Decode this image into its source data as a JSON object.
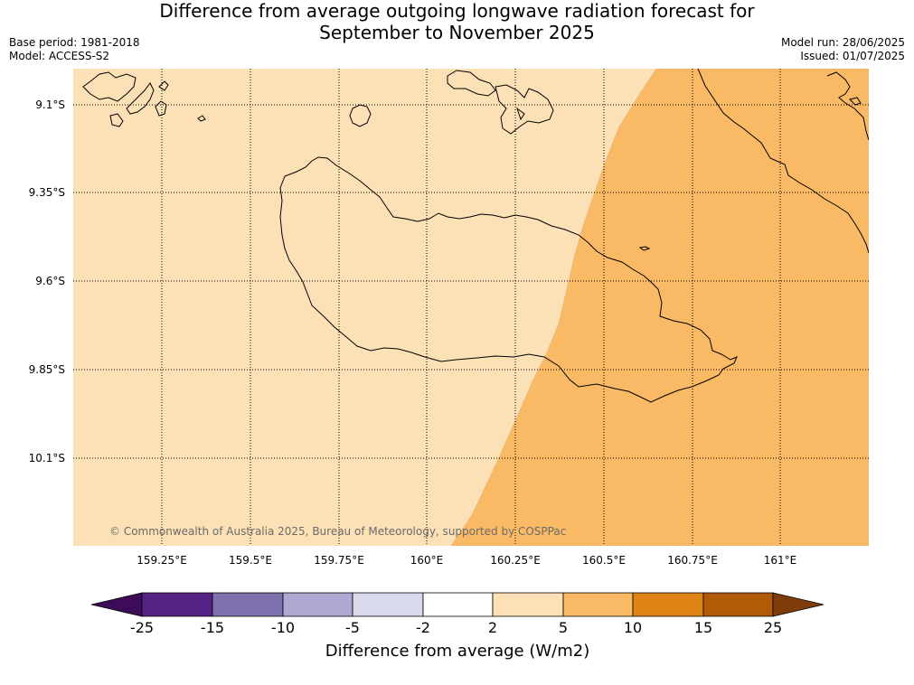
{
  "header": {
    "title_line1": "Difference from average outgoing longwave radiation forecast for",
    "title_line2": "September to November 2025",
    "base_period": "Base period: 1981-2018",
    "model": "Model: ACCESS-S2",
    "model_run": "Model run: 28/06/2025",
    "issued": "Issued: 01/07/2025"
  },
  "map": {
    "lat_labels": [
      "9.1°S",
      "9.35°S",
      "9.6°S",
      "9.85°S",
      "10.1°S"
    ],
    "lon_labels": [
      "159.25°E",
      "159.5°E",
      "159.75°E",
      "160°E",
      "160.25°E",
      "160.5°E",
      "160.75°E",
      "161°E"
    ],
    "copyright": "© Commonwealth of Australia 2025, Bureau of Meteorology, supported by COSPPac",
    "fill_colors": {
      "band_2_5": "#fce0b6",
      "band_5_10": "#fab965"
    },
    "grid": "dotted"
  },
  "colorbar": {
    "ticks": [
      "-25",
      "-15",
      "-10",
      "-5",
      "-2",
      "2",
      "5",
      "10",
      "15",
      "25"
    ],
    "colors": [
      "#3d0c59",
      "#552285",
      "#7f70ae",
      "#afa8d3",
      "#d9d9ec",
      "#ffffff",
      "#fce0b6",
      "#fab965",
      "#e08415",
      "#b15a08",
      "#7f3c0a"
    ],
    "label": "Difference from average (W/m2)"
  }
}
